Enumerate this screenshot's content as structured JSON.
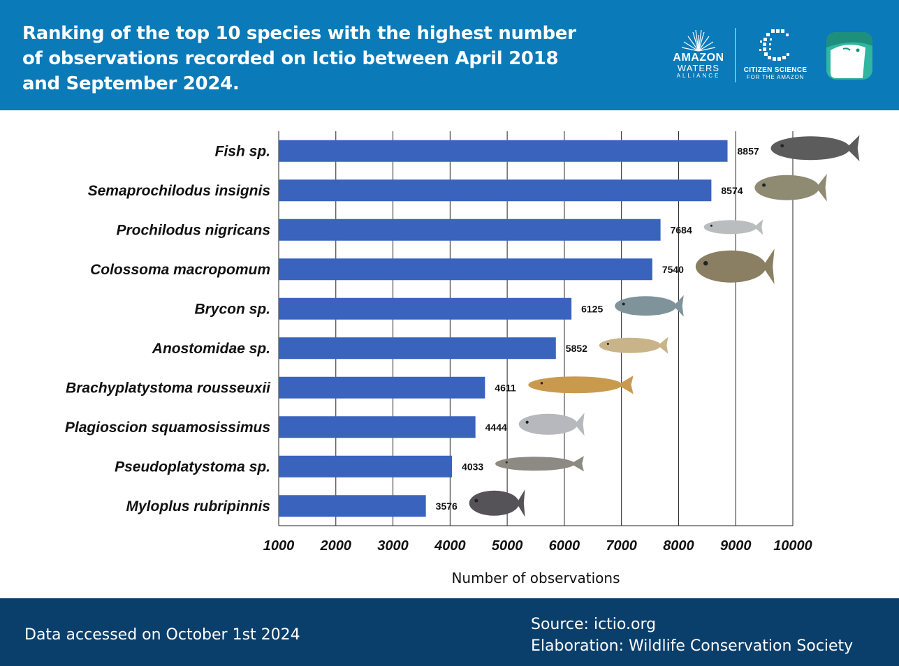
{
  "header": {
    "title": "Ranking of the top 10 species with the highest number of observations recorded on Ictio between April 2018 and September 2024.",
    "logos": {
      "amazon_line1": "AMAZON",
      "amazon_line2": "WATERS",
      "amazon_line3": "ALLIANCE",
      "citizen_line1": "CITIZEN SCIENCE",
      "citizen_line2": "FOR THE AMAZON"
    }
  },
  "colors": {
    "header_bg": "#0a7ab8",
    "footer_bg": "#0a3f6b",
    "bar": "#3a63be"
  },
  "chart_data": {
    "type": "bar",
    "orientation": "horizontal",
    "title": "",
    "xlabel": "Number of observations",
    "ylabel": "",
    "xlim": [
      1000,
      10000
    ],
    "xticks": [
      1000,
      2000,
      3000,
      4000,
      5000,
      6000,
      7000,
      8000,
      9000,
      10000
    ],
    "grid": "vertical",
    "categories": [
      "Fish sp.",
      "Semaprochilodus insignis",
      "Prochilodus nigricans",
      "Colossoma macropomum",
      "Brycon sp.",
      "Anostomidae sp.",
      "Brachyplatystoma rousseuxii",
      "Plagioscion squamosissimus",
      "Pseudoplatystoma sp.",
      "Myloplus rubripinnis"
    ],
    "values": [
      8857,
      8574,
      7684,
      7540,
      6125,
      5852,
      4611,
      4444,
      4033,
      3576
    ]
  },
  "footer": {
    "accessed": "Data accessed on October 1st 2024",
    "source": "Source: ictio.org",
    "elaboration": "Elaboration: Wildlife Conservation Society"
  }
}
